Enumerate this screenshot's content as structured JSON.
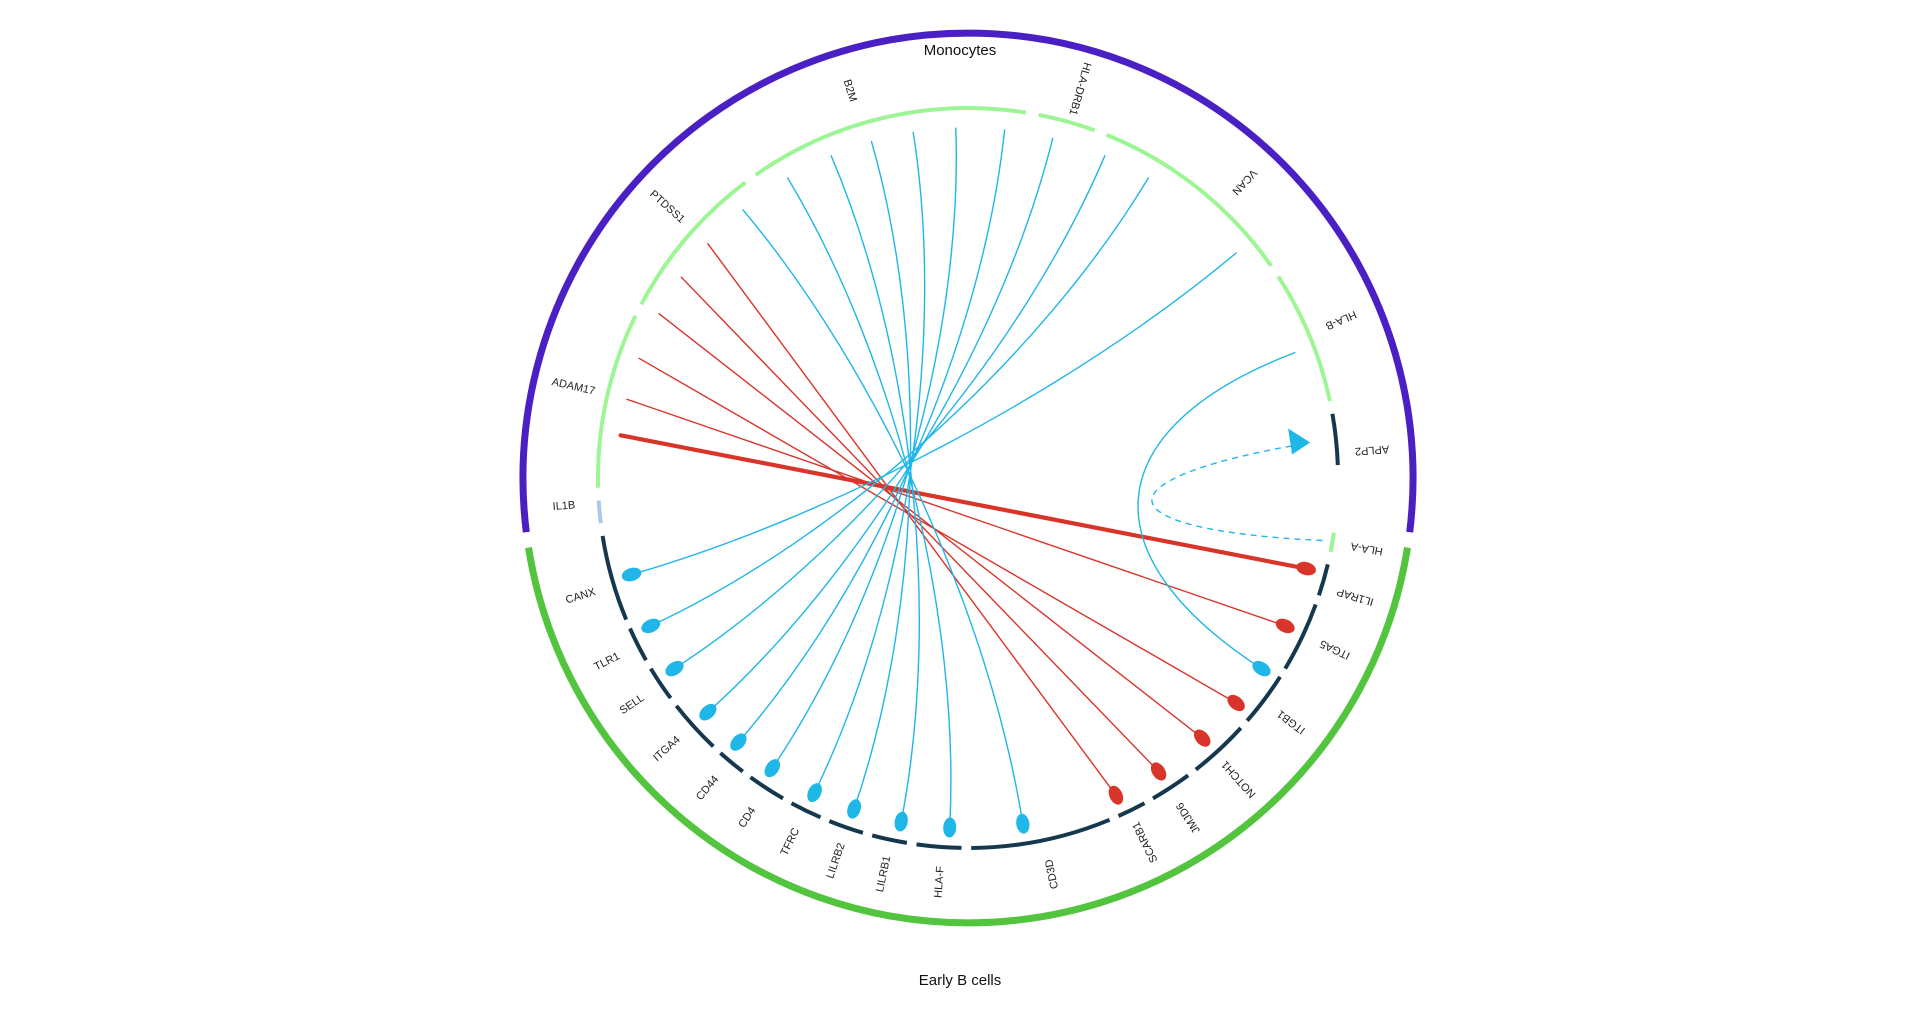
{
  "groups": {
    "top": {
      "label": "Monocytes",
      "color": "#4a1fc4"
    },
    "bottom": {
      "label": "Early B cells",
      "color": "#52c43e"
    }
  },
  "colors": {
    "ligand_ring": "#9ef595",
    "ligand_ring_alt": "#a9c8f0",
    "receptor_ring": "#15384f",
    "link_blue": "#1fb6e8",
    "link_red": "#d9342a"
  },
  "ligands": [
    {
      "name": "IL1B",
      "ring": "alt"
    },
    {
      "name": "ADAM17"
    },
    {
      "name": "PTDSS1"
    },
    {
      "name": "B2M"
    },
    {
      "name": "HLA-DRB1"
    },
    {
      "name": "VCAN"
    },
    {
      "name": "HLA-B"
    },
    {
      "name": "APLP2"
    },
    {
      "name": "HLA-A"
    }
  ],
  "receptors": [
    "IL1RAP",
    "ITGA5",
    "ITGB1",
    "NOTCH1",
    "JMJD6",
    "SCARB1",
    "CD3D",
    "HLA-F",
    "LILRB1",
    "LILRB2",
    "TFRC",
    "CD4",
    "CD44",
    "ITGA4",
    "SELL",
    "TLR1",
    "CANX"
  ],
  "chart_data": {
    "type": "chord",
    "groups": [
      "Monocytes",
      "Early B cells"
    ],
    "links": [
      {
        "from": "IL1B",
        "to": "IL1RAP",
        "color": "red",
        "weight": 3
      },
      {
        "from": "ADAM17",
        "to": "ITGA5",
        "color": "red",
        "weight": 1
      },
      {
        "from": "ADAM17",
        "to": "ITGB1",
        "color": "red",
        "weight": 1
      },
      {
        "from": "ADAM17",
        "to": "NOTCH1",
        "color": "red",
        "weight": 1
      },
      {
        "from": "PTDSS1",
        "to": "JMJD6",
        "color": "red",
        "weight": 1
      },
      {
        "from": "PTDSS1",
        "to": "SCARB1",
        "color": "red",
        "weight": 1
      },
      {
        "from": "B2M",
        "to": "CD3D",
        "color": "blue",
        "weight": 1
      },
      {
        "from": "B2M",
        "to": "HLA-F",
        "color": "blue",
        "weight": 1
      },
      {
        "from": "B2M",
        "to": "LILRB1",
        "color": "blue",
        "weight": 1
      },
      {
        "from": "B2M",
        "to": "LILRB2",
        "color": "blue",
        "weight": 1
      },
      {
        "from": "B2M",
        "to": "TFRC",
        "color": "blue",
        "weight": 1
      },
      {
        "from": "HLA-DRB1",
        "to": "CD4",
        "color": "blue",
        "weight": 1
      },
      {
        "from": "VCAN",
        "to": "CD44",
        "color": "blue",
        "weight": 1
      },
      {
        "from": "VCAN",
        "to": "ITGA4",
        "color": "blue",
        "weight": 1
      },
      {
        "from": "VCAN",
        "to": "SELL",
        "color": "blue",
        "weight": 1
      },
      {
        "from": "VCAN",
        "to": "TLR1",
        "color": "blue",
        "weight": 1
      },
      {
        "from": "HLA-B",
        "to": "CANX",
        "color": "blue",
        "weight": 1
      },
      {
        "from": "HLA-B",
        "to": "ITGA5",
        "color": "blue",
        "weight": 1
      },
      {
        "from": "HLA-A",
        "to": "APLP2",
        "color": "blue",
        "weight": 1,
        "dashed": true
      }
    ]
  }
}
